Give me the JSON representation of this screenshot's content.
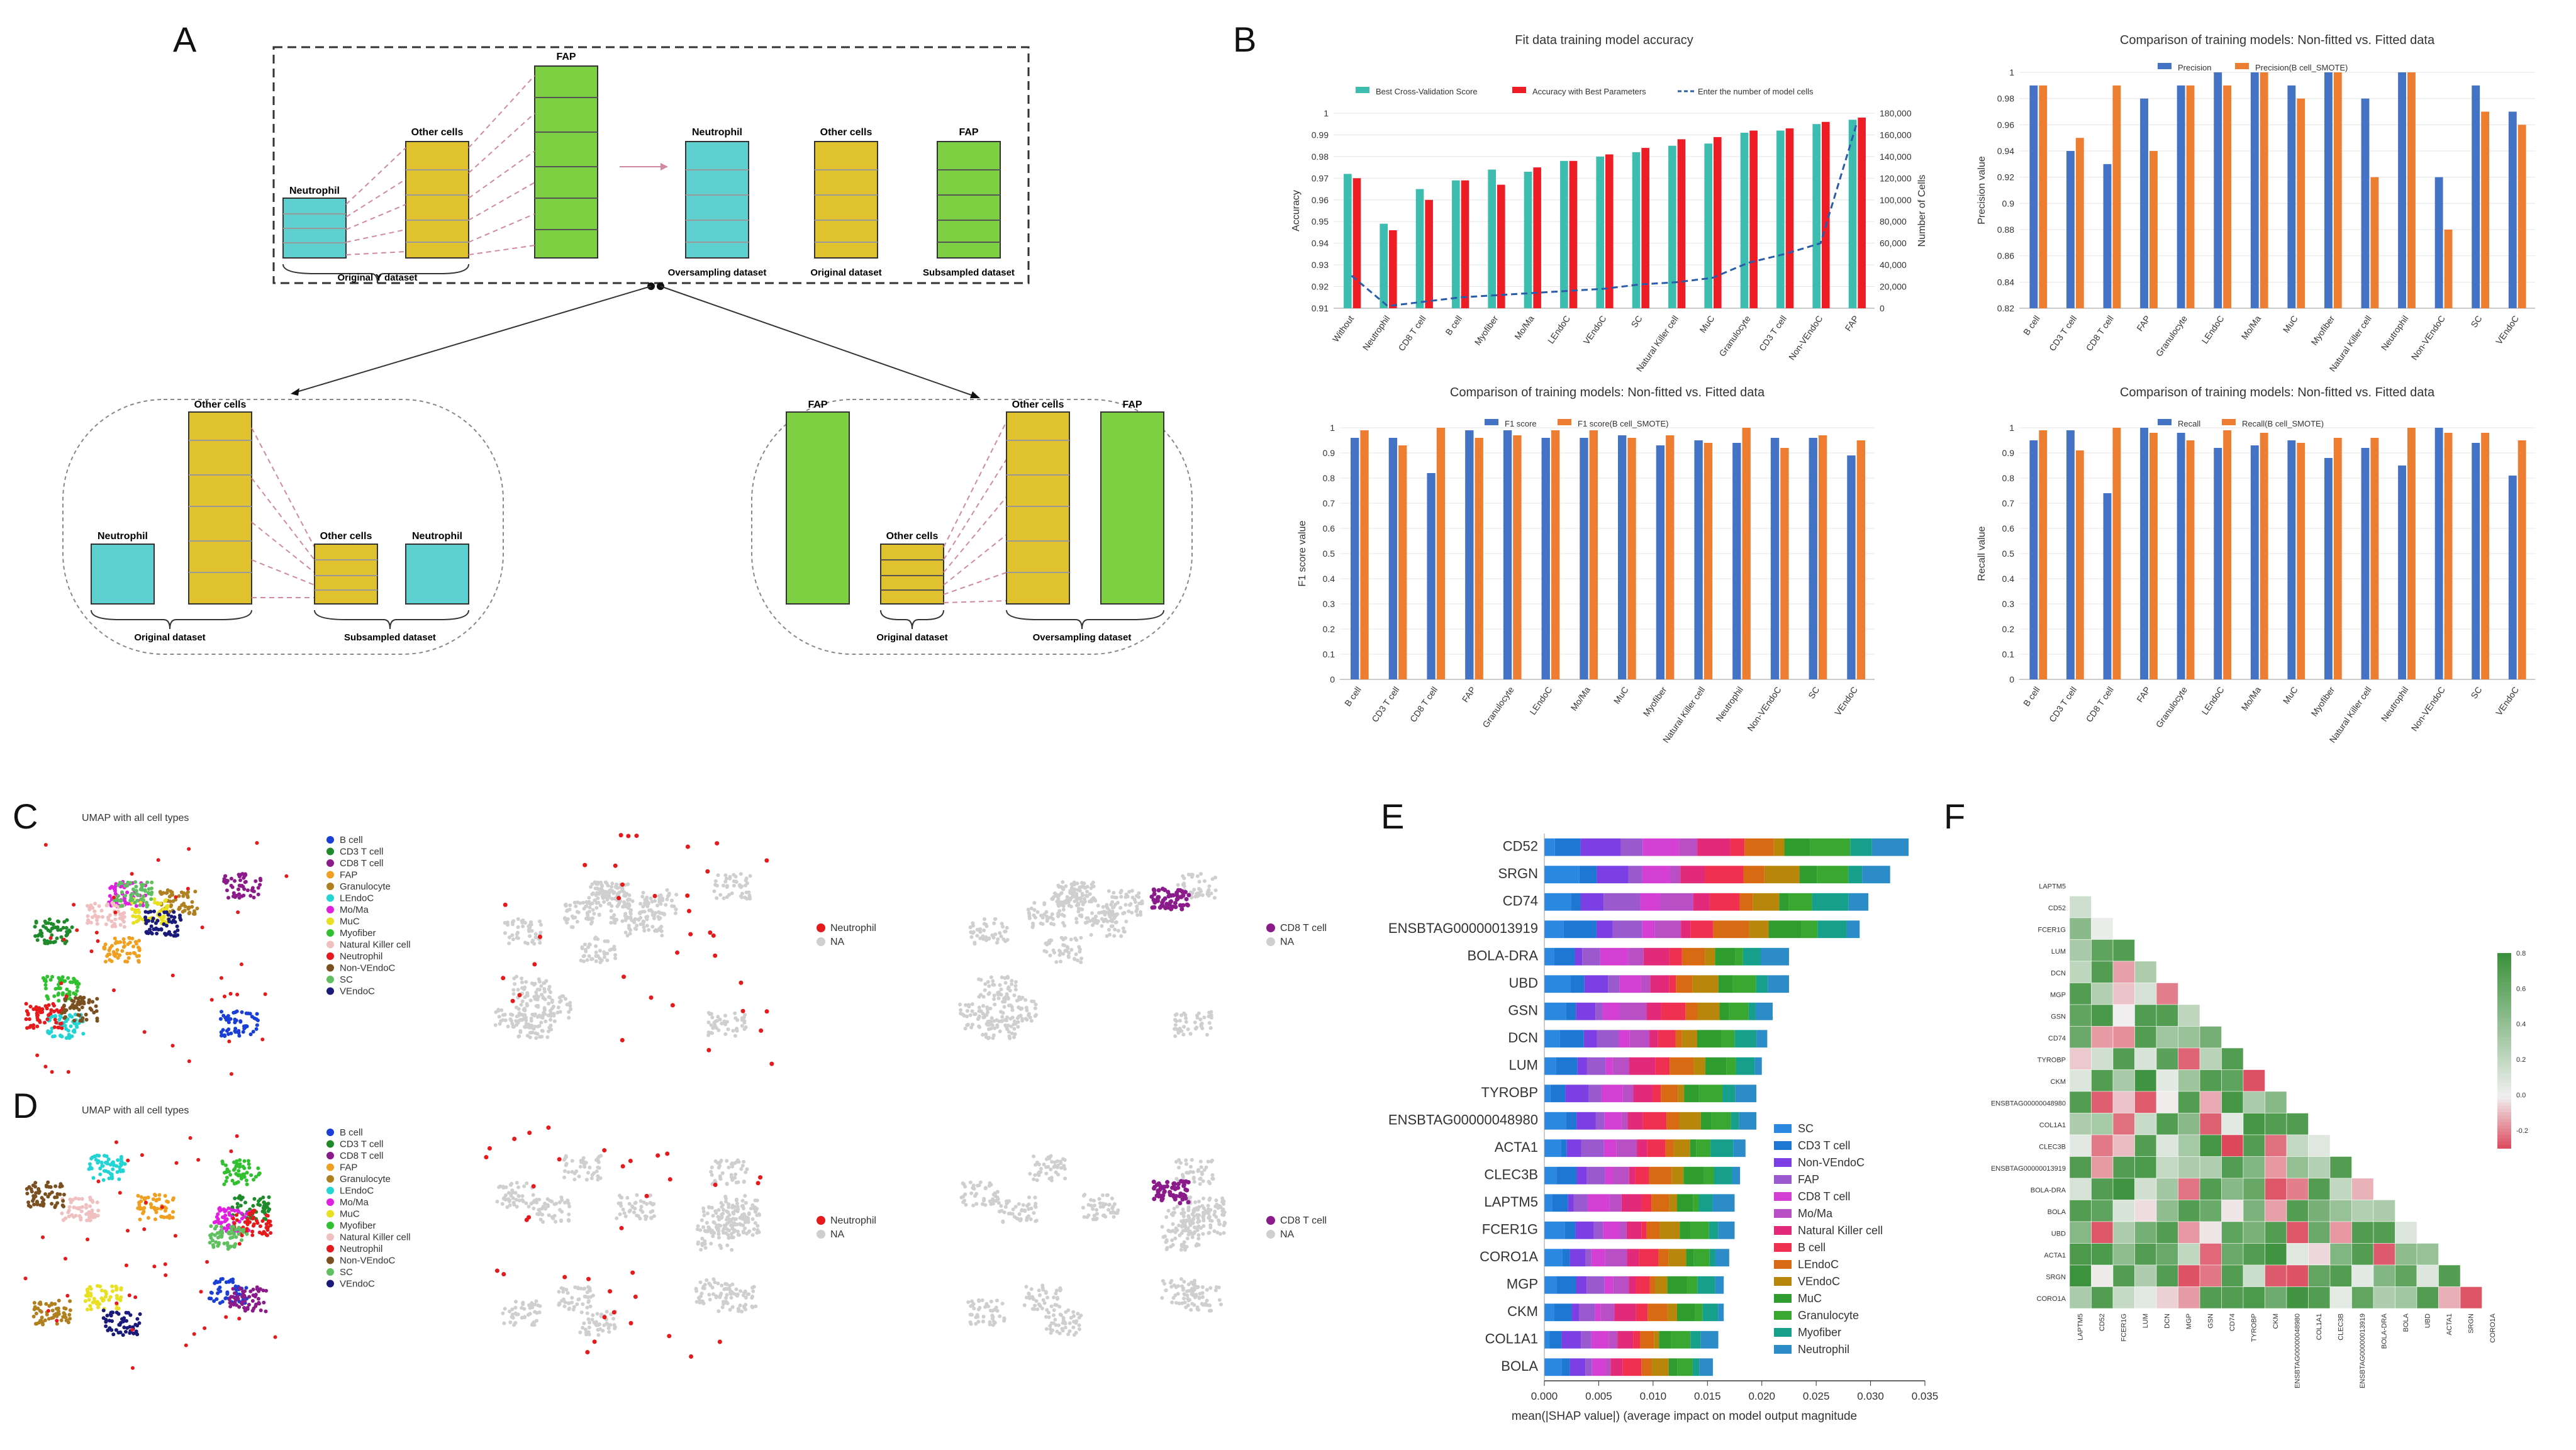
{
  "panel_labels": {
    "A": "A",
    "B": "B",
    "C": "C",
    "D": "D",
    "E": "E",
    "F": "F"
  },
  "panelA": {
    "neutrophil": "Neutrophil",
    "other_cells": "Other cells",
    "fap": "FAP",
    "original_y_dataset": "Original Y dataset",
    "oversampling_dataset": "Oversampling dataset",
    "original_dataset": "Original dataset",
    "subsampled_dataset": "Subsampled dataset"
  },
  "chart_data": [
    {
      "id": "B1",
      "type": "bar",
      "title": "Fit data training model accuracy",
      "ylabel": "Accuracy",
      "y2label": "Number of Cells",
      "ylim": [
        0.91,
        1.0
      ],
      "y2lim": [
        0,
        180000
      ],
      "categories": [
        "Without",
        "Neutrophil",
        "CD8 T cell",
        "B cell",
        "Myofiber",
        "Mo/Ma",
        "LEndoC",
        "VEndoC",
        "SC",
        "Natural Killer cell",
        "MuC",
        "Granulocyte",
        "CD3 T cell",
        "Non-VEndoC",
        "FAP"
      ],
      "series": [
        {
          "name": "Best Cross-Validation Score",
          "color": "#3dbdb0",
          "values": [
            0.972,
            0.949,
            0.965,
            0.969,
            0.974,
            0.973,
            0.978,
            0.98,
            0.982,
            0.985,
            0.986,
            0.991,
            0.992,
            0.995,
            0.997
          ]
        },
        {
          "name": "Accuracy with Best Parameters",
          "color": "#ee1c25",
          "values": [
            0.97,
            0.946,
            0.96,
            0.969,
            0.967,
            0.975,
            0.978,
            0.981,
            0.984,
            0.988,
            0.989,
            0.992,
            0.993,
            0.996,
            0.998
          ]
        },
        {
          "name": "Enter the number of model cells",
          "color": "#2a5caa",
          "type": "line",
          "values": [
            30000,
            2000,
            6000,
            10000,
            12000,
            14000,
            16000,
            18000,
            22000,
            24000,
            28000,
            42000,
            50000,
            60000,
            170000
          ]
        }
      ],
      "yticks": [
        "0.91",
        "0.92",
        "0.93",
        "0.94",
        "0.95",
        "0.96",
        "0.97",
        "0.98",
        "0.99",
        "1"
      ],
      "y2ticks": [
        "0",
        "20,000",
        "40,000",
        "60,000",
        "80,000",
        "100,000",
        "120,000",
        "140,000",
        "160,000",
        "180,000"
      ]
    },
    {
      "id": "B2",
      "type": "bar",
      "title": "Comparison of training models: Non-fitted vs. Fitted data",
      "ylabel": "Precision value",
      "ylim": [
        0.82,
        1.0
      ],
      "categories": [
        "B cell",
        "CD3 T cell",
        "CD8 T cell",
        "FAP",
        "Granulocyte",
        "LEndoC",
        "Mo/Ma",
        "MuC",
        "Myofiber",
        "Natural Killer cell",
        "Neutrophil",
        "Non-VEndoC",
        "SC",
        "VEndoC"
      ],
      "series": [
        {
          "name": "Precision",
          "color": "#4472c4",
          "values": [
            0.99,
            0.94,
            0.93,
            0.98,
            0.99,
            1.0,
            1.0,
            0.99,
            1.0,
            0.98,
            1.0,
            0.92,
            0.99,
            0.97
          ]
        },
        {
          "name": "Precision(B cell_SMOTE)",
          "color": "#ed7d31",
          "values": [
            0.99,
            0.95,
            0.99,
            0.94,
            0.99,
            0.99,
            1.0,
            0.98,
            1.0,
            0.92,
            1.0,
            0.88,
            0.97,
            0.96
          ]
        }
      ],
      "yticks": [
        "0.82",
        "0.84",
        "0.86",
        "0.88",
        "0.9",
        "0.92",
        "0.94",
        "0.96",
        "0.98",
        "1"
      ]
    },
    {
      "id": "B3",
      "type": "bar",
      "title": "Comparison of training models: Non-fitted vs. Fitted data",
      "ylabel": "F1 score value",
      "ylim": [
        0,
        1.0
      ],
      "categories": [
        "B cell",
        "CD3 T cell",
        "CD8 T cell",
        "FAP",
        "Granulocyte",
        "LEndoC",
        "Mo/Ma",
        "MuC",
        "Myofiber",
        "Natural Killer cell",
        "Neutrophil",
        "Non-VEndoC",
        "SC",
        "VEndoC"
      ],
      "series": [
        {
          "name": "F1 score",
          "color": "#4472c4",
          "values": [
            0.96,
            0.96,
            0.82,
            0.99,
            0.99,
            0.96,
            0.96,
            0.97,
            0.93,
            0.95,
            0.94,
            0.96,
            0.96,
            0.89
          ]
        },
        {
          "name": "F1 score(B cell_SMOTE)",
          "color": "#ed7d31",
          "values": [
            0.99,
            0.93,
            1.0,
            0.96,
            0.97,
            0.99,
            0.99,
            0.96,
            0.97,
            0.94,
            1.0,
            0.92,
            0.97,
            0.95
          ]
        }
      ],
      "yticks": [
        "0",
        "0.1",
        "0.2",
        "0.3",
        "0.4",
        "0.5",
        "0.6",
        "0.7",
        "0.8",
        "0.9",
        "1"
      ]
    },
    {
      "id": "B4",
      "type": "bar",
      "title": "Comparison of training models: Non-fitted vs. Fitted data",
      "ylabel": "Recall value",
      "ylim": [
        0,
        1.0
      ],
      "categories": [
        "B cell",
        "CD3 T cell",
        "CD8 T cell",
        "FAP",
        "Granulocyte",
        "LEndoC",
        "Mo/Ma",
        "MuC",
        "Myofiber",
        "Natural Killer cell",
        "Neutrophil",
        "Non-VEndoC",
        "SC",
        "VEndoC"
      ],
      "series": [
        {
          "name": "Recall",
          "color": "#4472c4",
          "values": [
            0.95,
            0.99,
            0.74,
            1.0,
            0.98,
            0.92,
            0.93,
            0.95,
            0.88,
            0.92,
            0.85,
            1.0,
            0.94,
            0.81
          ]
        },
        {
          "name": "Recall(B cell_SMOTE)",
          "color": "#ed7d31",
          "values": [
            0.99,
            0.91,
            1.0,
            0.98,
            0.95,
            0.99,
            0.98,
            0.94,
            0.96,
            0.96,
            1.0,
            0.98,
            0.98,
            0.95
          ]
        }
      ],
      "yticks": [
        "0",
        "0.1",
        "0.2",
        "0.3",
        "0.4",
        "0.5",
        "0.6",
        "0.7",
        "0.8",
        "0.9",
        "1"
      ]
    },
    {
      "id": "E",
      "type": "bar",
      "orientation": "horizontal-stacked",
      "xlabel": "mean(|SHAP value|) (average impact on model output magnitude",
      "xlim": [
        0,
        0.035
      ],
      "xticks": [
        "0.000",
        "0.005",
        "0.010",
        "0.015",
        "0.020",
        "0.025",
        "0.030",
        "0.035"
      ],
      "categories": [
        "CD52",
        "SRGN",
        "CD74",
        "ENSBTAG00000013919",
        "BOLA-DRA",
        "UBD",
        "GSN",
        "DCN",
        "LUM",
        "TYROBP",
        "ENSBTAG00000048980",
        "ACTA1",
        "CLEC3B",
        "LAPTM5",
        "FCER1G",
        "CORO1A",
        "MGP",
        "CKM",
        "COL1A1",
        "BOLA"
      ],
      "totals": [
        0.0335,
        0.0318,
        0.0298,
        0.029,
        0.0225,
        0.0225,
        0.021,
        0.0205,
        0.02,
        0.0195,
        0.0195,
        0.0185,
        0.018,
        0.0175,
        0.0175,
        0.017,
        0.0165,
        0.0165,
        0.016,
        0.0155
      ],
      "legend": [
        "SC",
        "CD3 T cell",
        "Non-VEndoC",
        "FAP",
        "CD8 T cell",
        "Mo/Ma",
        "Natural Killer cell",
        "B cell",
        "LEndoC",
        "VEndoC",
        "MuC",
        "Granulocyte",
        "Myofiber",
        "Neutrophil"
      ],
      "colors": [
        "#2a88e0",
        "#1f77d4",
        "#7b3fe4",
        "#9b59d0",
        "#d43fd4",
        "#b84fc4",
        "#e22a7a",
        "#f03050",
        "#d86a14",
        "#b8860b",
        "#2e9c2e",
        "#3aa830",
        "#16a08c",
        "#2b8cc8"
      ]
    }
  ],
  "umap": {
    "title": "UMAP with all cell types",
    "legend_c": [
      "B cell",
      "CD3 T cell",
      "CD8 T cell",
      "FAP",
      "Granulocyte",
      "LEndoC",
      "Mo/Ma",
      "MuC",
      "Myofiber",
      "Natural Killer cell",
      "Neutrophil",
      "Non-VEndoC",
      "SC",
      "VEndoC"
    ],
    "legend_d": [
      "B cell",
      "CD3 T cell",
      "CD8 T cell",
      "FAP",
      "Granulocyte",
      "LEndoC",
      "Mo/Ma",
      "MuC",
      "Myofiber",
      "Natural Killer cell",
      "Neutrophil",
      "Non-VEndoC",
      "SC",
      "VEndoC"
    ],
    "colors": [
      "#1a3fd6",
      "#1e8a2a",
      "#8b1a8b",
      "#f0a020",
      "#b08020",
      "#22d4d4",
      "#e020e0",
      "#e8e020",
      "#30c030",
      "#f0c0c0",
      "#e41a1c",
      "#7a5020",
      "#60c060",
      "#1a1a7a"
    ],
    "neutrophil_label": "Neutrophil",
    "cd8_label": "CD8 T cell",
    "na_label": "NA"
  },
  "heatmap": {
    "genes": [
      "LAPTM5",
      "CD52",
      "FCER1G",
      "LUM",
      "DCN",
      "MGP",
      "GSN",
      "CD74",
      "TYROBP",
      "CKM",
      "ENSBTAG00000048980",
      "COL1A1",
      "CLEC3B",
      "ENSBTAG00000013919",
      "BOLA-DRA",
      "BOLA",
      "UBD",
      "ACTA1",
      "SRGN",
      "CORO1A"
    ],
    "colorbar_ticks": [
      "0.8",
      "0.6",
      "0.4",
      "0.2",
      "0.0",
      "-0.2"
    ]
  }
}
